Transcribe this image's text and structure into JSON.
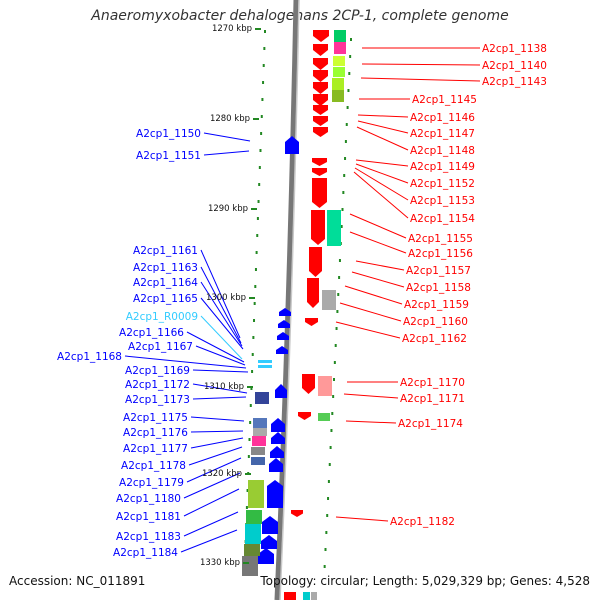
{
  "title": "Anaeromyxobacter dehalogenans 2CP-1, complete genome",
  "accession": "Accession: NC_011891",
  "footer": "Topology: circular; Length: 5,029,329 bp; Genes: 4,528",
  "colors": {
    "forward": "#ff0000",
    "reverse": "#0000ff",
    "rna": "#33ccff",
    "tick": "#228822",
    "backbone": "#777777"
  },
  "scale_labels": [
    "1270 kbp",
    "1280 kbp",
    "1290 kbp",
    "1300 kbp",
    "1310 kbp",
    "1320 kbp",
    "1330 kbp"
  ],
  "left_genes": [
    {
      "label": "A2cp1_1150",
      "type": "gene"
    },
    {
      "label": "A2cp1_1151",
      "type": "gene"
    },
    {
      "label": "A2cp1_1161",
      "type": "gene"
    },
    {
      "label": "A2cp1_1163",
      "type": "gene"
    },
    {
      "label": "A2cp1_1164",
      "type": "gene"
    },
    {
      "label": "A2cp1_1165",
      "type": "gene"
    },
    {
      "label": "A2cp1_R0009",
      "type": "rna"
    },
    {
      "label": "A2cp1_1166",
      "type": "gene"
    },
    {
      "label": "A2cp1_1167",
      "type": "gene"
    },
    {
      "label": "A2cp1_1168",
      "type": "gene"
    },
    {
      "label": "A2cp1_1169",
      "type": "gene"
    },
    {
      "label": "A2cp1_1172",
      "type": "gene"
    },
    {
      "label": "A2cp1_1173",
      "type": "gene"
    },
    {
      "label": "A2cp1_1175",
      "type": "gene"
    },
    {
      "label": "A2cp1_1176",
      "type": "gene"
    },
    {
      "label": "A2cp1_1177",
      "type": "gene"
    },
    {
      "label": "A2cp1_1178",
      "type": "gene"
    },
    {
      "label": "A2cp1_1179",
      "type": "gene"
    },
    {
      "label": "A2cp1_1180",
      "type": "gene"
    },
    {
      "label": "A2cp1_1181",
      "type": "gene"
    },
    {
      "label": "A2cp1_1183",
      "type": "gene"
    },
    {
      "label": "A2cp1_1184",
      "type": "gene"
    }
  ],
  "right_genes": [
    {
      "label": "A2cp1_1138"
    },
    {
      "label": "A2cp1_1140"
    },
    {
      "label": "A2cp1_1143"
    },
    {
      "label": "A2cp1_1145"
    },
    {
      "label": "A2cp1_1146"
    },
    {
      "label": "A2cp1_1147"
    },
    {
      "label": "A2cp1_1148"
    },
    {
      "label": "A2cp1_1149"
    },
    {
      "label": "A2cp1_1152"
    },
    {
      "label": "A2cp1_1153"
    },
    {
      "label": "A2cp1_1154"
    },
    {
      "label": "A2cp1_1155"
    },
    {
      "label": "A2cp1_1156"
    },
    {
      "label": "A2cp1_1157"
    },
    {
      "label": "A2cp1_1158"
    },
    {
      "label": "A2cp1_1159"
    },
    {
      "label": "A2cp1_1160"
    },
    {
      "label": "A2cp1_1162"
    },
    {
      "label": "A2cp1_1170"
    },
    {
      "label": "A2cp1_1171"
    },
    {
      "label": "A2cp1_1174"
    },
    {
      "label": "A2cp1_1182"
    }
  ]
}
